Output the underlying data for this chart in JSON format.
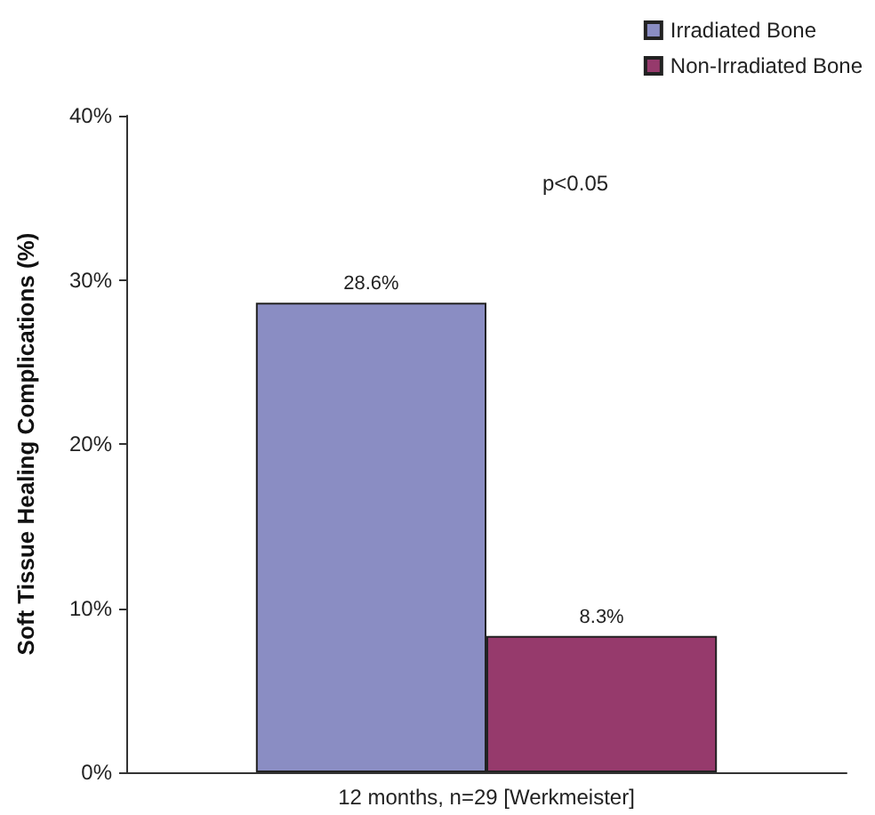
{
  "chart_data": {
    "type": "bar",
    "ylabel": "Soft Tissue Healing Complications (%)",
    "categories": [
      "12 months, n=29 [Werkmeister]"
    ],
    "series": [
      {
        "name": "Irradiated Bone",
        "color": "#8a8dc3",
        "values": [
          28.6
        ],
        "value_labels": [
          "28.6%"
        ]
      },
      {
        "name": "Non-Irradiated Bone",
        "color": "#963a6c",
        "values": [
          8.3
        ],
        "value_labels": [
          "8.3%"
        ]
      }
    ],
    "ylim": [
      0,
      40
    ],
    "yticks": [
      {
        "value": 0,
        "label": "0%"
      },
      {
        "value": 10,
        "label": "10%"
      },
      {
        "value": 20,
        "label": "20%"
      },
      {
        "value": 30,
        "label": "30%"
      },
      {
        "value": 40,
        "label": "40%"
      }
    ],
    "annotations": [
      "p<0.05"
    ],
    "grid": false,
    "legend": "top right"
  }
}
